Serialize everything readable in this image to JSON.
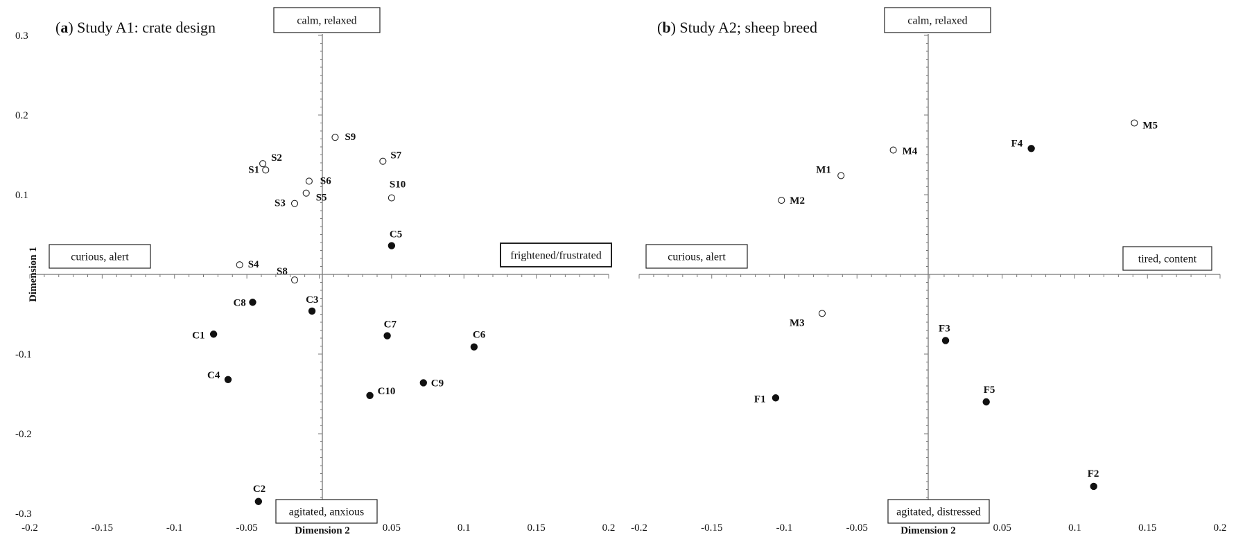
{
  "chart_data": [
    {
      "type": "scatter",
      "title_prefix": "(",
      "title_bold": "a",
      "title_suffix": ") Study A1: crate design",
      "xlabel": "Dimension 2",
      "ylabel": "Dimension 1",
      "xlim": [
        -0.2,
        0.2
      ],
      "ylim": [
        -0.3,
        0.3
      ],
      "xticks": [
        "-0.2",
        "-0.15",
        "-0.1",
        "-0.05",
        "0.05",
        "0.1",
        "0.15",
        "0.2"
      ],
      "xtick_values": [
        -0.2,
        -0.15,
        -0.1,
        -0.05,
        0.05,
        0.1,
        0.15,
        0.2
      ],
      "yticks": [
        "0.3",
        "0.2",
        "0.1",
        "-0.1",
        "-0.2",
        "-0.3"
      ],
      "ytick_values": [
        0.3,
        0.2,
        0.1,
        -0.1,
        -0.2,
        -0.3
      ],
      "quadrant_labels": {
        "top": "calm, relaxed",
        "bottom": "agitated, anxious",
        "left": "curious, alert",
        "right": "frightened/frustrated"
      },
      "series": [
        {
          "marker": "open",
          "points": [
            {
              "label": "S1",
              "x": -0.037,
              "y": 0.131
            },
            {
              "label": "S2",
              "x": -0.039,
              "y": 0.139
            },
            {
              "label": "S3",
              "x": -0.017,
              "y": 0.089
            },
            {
              "label": "S4",
              "x": -0.055,
              "y": 0.012
            },
            {
              "label": "S5",
              "x": -0.009,
              "y": 0.102
            },
            {
              "label": "S6",
              "x": -0.007,
              "y": 0.117
            },
            {
              "label": "S7",
              "x": 0.044,
              "y": 0.142
            },
            {
              "label": "S8",
              "x": -0.017,
              "y": -0.007
            },
            {
              "label": "S9",
              "x": 0.011,
              "y": 0.172
            },
            {
              "label": "S10",
              "x": 0.05,
              "y": 0.096
            }
          ]
        },
        {
          "marker": "filled",
          "points": [
            {
              "label": "C1",
              "x": -0.073,
              "y": -0.075
            },
            {
              "label": "C2",
              "x": -0.042,
              "y": -0.285
            },
            {
              "label": "C3",
              "x": -0.005,
              "y": -0.046
            },
            {
              "label": "C4",
              "x": -0.063,
              "y": -0.132
            },
            {
              "label": "C5",
              "x": 0.05,
              "y": 0.036
            },
            {
              "label": "C6",
              "x": 0.107,
              "y": -0.091
            },
            {
              "label": "C7",
              "x": 0.047,
              "y": -0.077
            },
            {
              "label": "C8",
              "x": -0.046,
              "y": -0.035
            },
            {
              "label": "C9",
              "x": 0.072,
              "y": -0.136
            },
            {
              "label": "C10",
              "x": 0.035,
              "y": -0.152
            }
          ]
        }
      ]
    },
    {
      "type": "scatter",
      "title_prefix": "(",
      "title_bold": "b",
      "title_suffix": ") Study A2; sheep breed",
      "xlabel": "Dimension 2",
      "xlim": [
        -0.2,
        0.2
      ],
      "xticks": [
        "-0.2",
        "-0.15",
        "-0.1",
        "-0.05",
        "0.05",
        "0.1",
        "0.15",
        "0.2"
      ],
      "xtick_values": [
        -0.2,
        -0.15,
        -0.1,
        -0.05,
        0.05,
        0.1,
        0.15,
        0.2
      ],
      "ylim": [
        -0.3,
        0.3
      ],
      "quadrant_labels": {
        "top": "calm, relaxed",
        "bottom": "agitated, distressed",
        "left": "curious, alert",
        "right": "tired, content"
      },
      "series": [
        {
          "marker": "open",
          "points": [
            {
              "label": "M1",
              "x": -0.061,
              "y": 0.124
            },
            {
              "label": "M2",
              "x": -0.102,
              "y": 0.093
            },
            {
              "label": "M3",
              "x": -0.074,
              "y": -0.049
            },
            {
              "label": "M4",
              "x": -0.025,
              "y": 0.156
            },
            {
              "label": "M5",
              "x": 0.141,
              "y": 0.19
            }
          ]
        },
        {
          "marker": "filled",
          "points": [
            {
              "label": "F1",
              "x": -0.106,
              "y": -0.155
            },
            {
              "label": "F2",
              "x": 0.113,
              "y": -0.266
            },
            {
              "label": "F3",
              "x": 0.011,
              "y": -0.083
            },
            {
              "label": "F4",
              "x": 0.07,
              "y": 0.158
            },
            {
              "label": "F5",
              "x": 0.039,
              "y": -0.16
            }
          ]
        }
      ]
    }
  ]
}
